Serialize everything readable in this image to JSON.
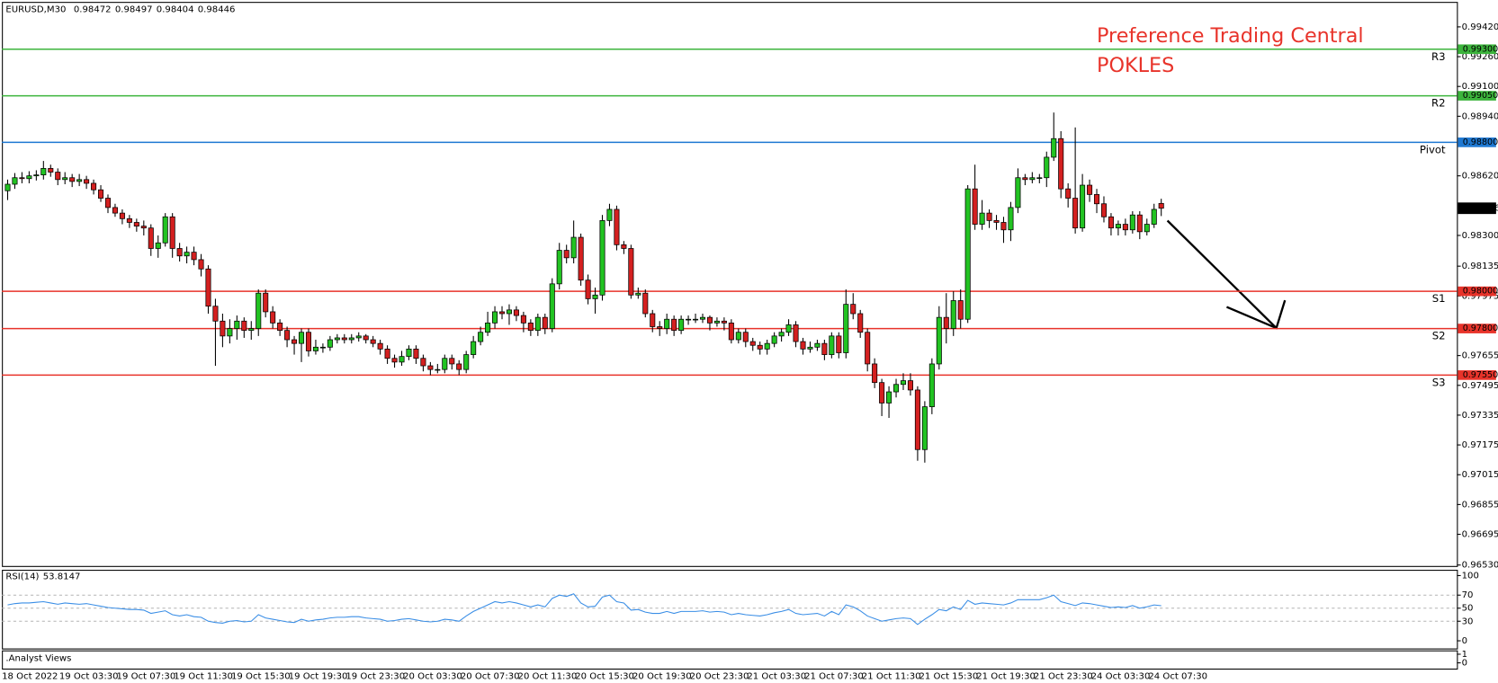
{
  "chart_data": [
    {
      "type": "candlestick",
      "title": "EURUSD,M30",
      "annotations": [
        "Preference Trading Central",
        "POKLES"
      ],
      "categories": [
        "18 Oct 2022",
        null,
        null,
        null,
        null,
        null,
        null,
        null,
        "19 Oct 03:30",
        null,
        null,
        null,
        null,
        null,
        null,
        null,
        "19 Oct 07:30",
        null,
        null,
        null,
        null,
        null,
        null,
        null,
        "19 Oct 11:30",
        null,
        null,
        null,
        null,
        null,
        null,
        null,
        "19 Oct 15:30",
        null,
        null,
        null,
        null,
        null,
        null,
        null,
        "19 Oct 19:30",
        null,
        null,
        null,
        null,
        null,
        null,
        null,
        "19 Oct 23:30",
        null,
        null,
        null,
        null,
        null,
        null,
        null,
        "20 Oct 03:30",
        null,
        null,
        null,
        null,
        null,
        null,
        null,
        "20 Oct 07:30",
        null,
        null,
        null,
        null,
        null,
        null,
        null,
        "20 Oct 11:30",
        null,
        null,
        null,
        null,
        null,
        null,
        null,
        "20 Oct 15:30",
        null,
        null,
        null,
        null,
        null,
        null,
        null,
        "20 Oct 19:30",
        null,
        null,
        null,
        null,
        null,
        null,
        null,
        "20 Oct 23:30",
        null,
        null,
        null,
        null,
        null,
        null,
        null,
        "21 Oct 03:30",
        null,
        null,
        null,
        null,
        null,
        null,
        null,
        "21 Oct 07:30",
        null,
        null,
        null,
        null,
        null,
        null,
        null,
        "21 Oct 11:30",
        null,
        null,
        null,
        null,
        null,
        null,
        null,
        "21 Oct 15:30",
        null,
        null,
        null,
        null,
        null,
        null,
        null,
        "21 Oct 19:30",
        null,
        null,
        null,
        null,
        null,
        null,
        null,
        "21 Oct 23:30",
        null,
        null,
        null,
        null,
        null,
        null,
        null,
        "24 Oct 03:30",
        null,
        null,
        null,
        null,
        null,
        null,
        null,
        "24 Oct 07:30",
        null
      ],
      "open": [
        0.9854,
        0.98575,
        0.9861,
        0.98605,
        0.9862,
        0.98625,
        0.9866,
        0.9864,
        0.986,
        0.9861,
        0.9859,
        0.986,
        0.9858,
        0.98545,
        0.985,
        0.9845,
        0.9842,
        0.9839,
        0.9837,
        0.9835,
        0.9834,
        0.9823,
        0.9826,
        0.984,
        0.9823,
        0.9819,
        0.9821,
        0.9817,
        0.9812,
        0.9792,
        0.9784,
        0.9776,
        0.978,
        0.9784,
        0.9779,
        0.978,
        0.9799,
        0.9789,
        0.9783,
        0.9779,
        0.9774,
        0.9772,
        0.9778,
        0.9768,
        0.977,
        0.977,
        0.9774,
        0.9775,
        0.9774,
        0.9775,
        0.9776,
        0.9774,
        0.9772,
        0.9769,
        0.9764,
        0.9762,
        0.9765,
        0.9769,
        0.9764,
        0.976,
        0.9758,
        0.9758,
        0.9764,
        0.9761,
        0.9758,
        0.9766,
        0.9773,
        0.9778,
        0.9783,
        0.9789,
        0.9788,
        0.979,
        0.9787,
        0.9783,
        0.9779,
        0.9786,
        0.978,
        0.9804,
        0.9822,
        0.9818,
        0.9829,
        0.9806,
        0.9796,
        0.9798,
        0.9838,
        0.9844,
        0.9825,
        0.9823,
        0.9798,
        0.9799,
        0.9788,
        0.9781,
        0.978,
        0.9785,
        0.9779,
        0.9785,
        0.9785,
        0.9785,
        0.9786,
        0.9783,
        0.9784,
        0.9783,
        0.9774,
        0.9778,
        0.9773,
        0.9771,
        0.9769,
        0.9772,
        0.9776,
        0.9778,
        0.9782,
        0.9773,
        0.9769,
        0.977,
        0.9772,
        0.9766,
        0.9776,
        0.9767,
        0.9793,
        0.9788,
        0.9778,
        0.9761,
        0.9751,
        0.974,
        0.9746,
        0.975,
        0.9752,
        0.9747,
        0.9715,
        0.9738,
        0.9761,
        0.9786,
        0.978,
        0.9795,
        0.9785,
        0.9855,
        0.9836,
        0.9842,
        0.9838,
        0.9837,
        0.9833,
        0.9845,
        0.9861,
        0.986,
        0.9861,
        0.9861,
        0.9872,
        0.9882,
        0.9855,
        0.985,
        0.9834,
        0.9857,
        0.9852,
        0.9847,
        0.984,
        0.9834,
        0.9836,
        0.9833,
        0.9841,
        0.9832,
        0.9836,
        0.98472
      ],
      "high": [
        0.986,
        0.98635,
        0.9864,
        0.98645,
        0.9865,
        0.987,
        0.9868,
        0.9866,
        0.9864,
        0.9863,
        0.9863,
        0.9862,
        0.986,
        0.9857,
        0.9852,
        0.9847,
        0.9844,
        0.9841,
        0.9839,
        0.9838,
        0.9836,
        0.983,
        0.9842,
        0.9842,
        0.9826,
        0.9824,
        0.9824,
        0.982,
        0.9814,
        0.9796,
        0.9788,
        0.9785,
        0.9787,
        0.9786,
        0.9784,
        0.9801,
        0.9801,
        0.9792,
        0.9785,
        0.9781,
        0.9776,
        0.978,
        0.978,
        0.9774,
        0.9772,
        0.9776,
        0.9777,
        0.9777,
        0.9777,
        0.9778,
        0.9777,
        0.9776,
        0.9774,
        0.9771,
        0.9766,
        0.9768,
        0.9771,
        0.9771,
        0.9766,
        0.9762,
        0.9761,
        0.9766,
        0.9766,
        0.9763,
        0.9768,
        0.9776,
        0.9781,
        0.9789,
        0.9792,
        0.9792,
        0.9793,
        0.9792,
        0.9789,
        0.9785,
        0.9788,
        0.9788,
        0.9807,
        0.9826,
        0.9825,
        0.9838,
        0.9831,
        0.9809,
        0.9802,
        0.9841,
        0.9847,
        0.9846,
        0.9827,
        0.9825,
        0.9802,
        0.9801,
        0.979,
        0.9784,
        0.9788,
        0.9787,
        0.9787,
        0.9787,
        0.9788,
        0.9788,
        0.9787,
        0.9786,
        0.9786,
        0.9785,
        0.978,
        0.978,
        0.9775,
        0.9773,
        0.9774,
        0.9778,
        0.978,
        0.9785,
        0.9784,
        0.9775,
        0.9773,
        0.9774,
        0.9774,
        0.9778,
        0.9778,
        0.9801,
        0.9799,
        0.979,
        0.978,
        0.9764,
        0.9753,
        0.9749,
        0.9753,
        0.9756,
        0.9756,
        0.9749,
        0.9741,
        0.9764,
        0.9792,
        0.9799,
        0.98,
        0.9801,
        0.9857,
        0.9868,
        0.9849,
        0.9844,
        0.9841,
        0.984,
        0.9848,
        0.9866,
        0.9863,
        0.9864,
        0.9863,
        0.9875,
        0.9896,
        0.9886,
        0.9858,
        0.9888,
        0.9863,
        0.986,
        0.9855,
        0.9851,
        0.9842,
        0.9838,
        0.9839,
        0.9843,
        0.9843,
        0.9839,
        0.9847,
        0.98497
      ],
      "low": [
        0.9849,
        0.9855,
        0.9858,
        0.9858,
        0.98595,
        0.986,
        0.98615,
        0.9857,
        0.98575,
        0.9856,
        0.98565,
        0.9855,
        0.9852,
        0.9848,
        0.9842,
        0.984,
        0.9836,
        0.9834,
        0.9832,
        0.983,
        0.9819,
        0.9818,
        0.9824,
        0.9818,
        0.9816,
        0.9815,
        0.9814,
        0.9808,
        0.9788,
        0.976,
        0.977,
        0.9772,
        0.9774,
        0.9775,
        0.9774,
        0.9776,
        0.9786,
        0.978,
        0.9776,
        0.977,
        0.9766,
        0.9762,
        0.9765,
        0.9766,
        0.9767,
        0.9768,
        0.9772,
        0.9772,
        0.9772,
        0.9773,
        0.9772,
        0.977,
        0.9766,
        0.9761,
        0.9759,
        0.976,
        0.9763,
        0.9761,
        0.9757,
        0.9755,
        0.9756,
        0.9756,
        0.9758,
        0.9755,
        0.9756,
        0.9764,
        0.9771,
        0.9776,
        0.978,
        0.9785,
        0.9782,
        0.9784,
        0.9778,
        0.9776,
        0.9776,
        0.9777,
        0.9778,
        0.9801,
        0.9815,
        0.9815,
        0.9803,
        0.9793,
        0.9788,
        0.9795,
        0.9835,
        0.9822,
        0.982,
        0.9796,
        0.9796,
        0.9786,
        0.9778,
        0.9776,
        0.9777,
        0.9776,
        0.9777,
        0.9782,
        0.9783,
        0.9783,
        0.9779,
        0.9781,
        0.9779,
        0.9772,
        0.9772,
        0.977,
        0.9768,
        0.9766,
        0.9766,
        0.977,
        0.9773,
        0.9776,
        0.977,
        0.9766,
        0.9767,
        0.9768,
        0.9763,
        0.9764,
        0.9764,
        0.9764,
        0.9785,
        0.9775,
        0.9757,
        0.9748,
        0.9733,
        0.9732,
        0.9743,
        0.9747,
        0.9744,
        0.9709,
        0.9708,
        0.9734,
        0.9758,
        0.9772,
        0.9776,
        0.978,
        0.9783,
        0.9833,
        0.9833,
        0.9834,
        0.9833,
        0.9826,
        0.9827,
        0.9842,
        0.9857,
        0.9858,
        0.9858,
        0.9856,
        0.987,
        0.985,
        0.9845,
        0.9831,
        0.9832,
        0.9848,
        0.9842,
        0.9837,
        0.983,
        0.983,
        0.983,
        0.9831,
        0.9828,
        0.983,
        0.9834,
        0.98404
      ],
      "close": [
        0.98575,
        0.9861,
        0.98605,
        0.9862,
        0.98625,
        0.9866,
        0.9864,
        0.986,
        0.9861,
        0.9859,
        0.986,
        0.9858,
        0.98545,
        0.985,
        0.9845,
        0.9842,
        0.9839,
        0.9837,
        0.9835,
        0.9834,
        0.9823,
        0.9826,
        0.984,
        0.9823,
        0.9819,
        0.9821,
        0.9817,
        0.9812,
        0.9792,
        0.9784,
        0.9776,
        0.978,
        0.9784,
        0.9779,
        0.978,
        0.9799,
        0.9789,
        0.9783,
        0.9779,
        0.9774,
        0.9772,
        0.9778,
        0.9768,
        0.977,
        0.977,
        0.9774,
        0.9775,
        0.9774,
        0.9775,
        0.9776,
        0.9774,
        0.9772,
        0.9769,
        0.9764,
        0.9762,
        0.9765,
        0.9769,
        0.9764,
        0.976,
        0.9758,
        0.9758,
        0.9764,
        0.9761,
        0.9758,
        0.9766,
        0.9773,
        0.9778,
        0.9783,
        0.9789,
        0.9788,
        0.979,
        0.9787,
        0.9783,
        0.9779,
        0.9786,
        0.978,
        0.9804,
        0.9822,
        0.9818,
        0.9829,
        0.9806,
        0.9796,
        0.9798,
        0.9838,
        0.9844,
        0.9825,
        0.9823,
        0.9798,
        0.9799,
        0.9788,
        0.9781,
        0.978,
        0.9785,
        0.9779,
        0.9785,
        0.9785,
        0.9785,
        0.9786,
        0.9783,
        0.9784,
        0.9783,
        0.9774,
        0.9778,
        0.9773,
        0.9771,
        0.9769,
        0.9772,
        0.9776,
        0.9778,
        0.9782,
        0.9773,
        0.9769,
        0.977,
        0.9772,
        0.9766,
        0.9776,
        0.9767,
        0.9793,
        0.9788,
        0.9778,
        0.9761,
        0.9751,
        0.974,
        0.9746,
        0.975,
        0.9752,
        0.9747,
        0.9715,
        0.9738,
        0.9761,
        0.9786,
        0.978,
        0.9795,
        0.9785,
        0.9855,
        0.9836,
        0.9842,
        0.9838,
        0.9837,
        0.9833,
        0.9845,
        0.9861,
        0.986,
        0.9861,
        0.9861,
        0.9872,
        0.9882,
        0.9855,
        0.985,
        0.9834,
        0.9857,
        0.9852,
        0.9847,
        0.984,
        0.9834,
        0.9836,
        0.9833,
        0.9841,
        0.9832,
        0.9836,
        0.9844,
        0.98446
      ],
      "up_color": "#22c322",
      "down_color": "#d42020",
      "ylim": [
        0.96525,
        0.99554
      ],
      "yticks": [
        {
          "value": 0.9942,
          "label": "0.99420"
        },
        {
          "value": 0.9926,
          "label": "0.99260"
        },
        {
          "value": 0.991,
          "label": "0.99100"
        },
        {
          "value": 0.9894,
          "label": "0.98940"
        },
        {
          "value": 0.9862,
          "label": "0.98620"
        },
        {
          "value": 0.983,
          "label": "0.98300"
        },
        0.98135,
        0.97975,
        0.97655,
        0.97495,
        0.97335,
        0.97175,
        0.97015,
        0.96855,
        0.96695,
        {
          "value": 0.9653,
          "label": "0.96530"
        }
      ],
      "levels": [
        {
          "name": "R3",
          "value": 0.993,
          "value_label": "0.99300",
          "color": "#3cb43c"
        },
        {
          "name": "R2",
          "value": 0.9905,
          "value_label": "0.99050",
          "color": "#3cb43c"
        },
        {
          "name": "Pivot",
          "value": 0.988,
          "value_label": "0.98800",
          "color": "#1e78d2"
        },
        {
          "name": "S1",
          "value": 0.98,
          "value_label": "0.98000",
          "color": "#e8332a"
        },
        {
          "name": "S2",
          "value": 0.978,
          "value_label": "0.97800",
          "color": "#e8332a"
        },
        {
          "name": "S3",
          "value": 0.9755,
          "value_label": "0.97550",
          "color": "#e8332a"
        }
      ]
    },
    {
      "type": "line",
      "title": "RSI(14)",
      "color": "#3a8ee6",
      "values": [
        55,
        57,
        58,
        58,
        59,
        60,
        58,
        56,
        58,
        57,
        56,
        57,
        55,
        53,
        51,
        50,
        49,
        48,
        48,
        47,
        42,
        44,
        46,
        40,
        38,
        40,
        37,
        36,
        30,
        28,
        27,
        30,
        31,
        29,
        30,
        40,
        35,
        33,
        31,
        29,
        28,
        33,
        30,
        32,
        33,
        35,
        36,
        36,
        37,
        37,
        35,
        34,
        33,
        30,
        31,
        33,
        34,
        32,
        30,
        29,
        30,
        33,
        32,
        30,
        38,
        45,
        50,
        55,
        60,
        58,
        60,
        58,
        55,
        52,
        55,
        52,
        65,
        70,
        68,
        72,
        58,
        52,
        53,
        67,
        70,
        60,
        58,
        47,
        48,
        44,
        42,
        42,
        45,
        42,
        45,
        45,
        45,
        46,
        44,
        45,
        44,
        40,
        42,
        40,
        39,
        38,
        40,
        43,
        45,
        48,
        42,
        40,
        41,
        42,
        38,
        45,
        40,
        55,
        52,
        46,
        38,
        34,
        30,
        32,
        34,
        35,
        34,
        25,
        33,
        40,
        48,
        46,
        52,
        48,
        62,
        56,
        58,
        57,
        56,
        55,
        58,
        63,
        63,
        63,
        63,
        66,
        70,
        60,
        57,
        54,
        58,
        57,
        55,
        53,
        51,
        52,
        51,
        54,
        50,
        52,
        55,
        53.8147
      ],
      "ylim": [
        0,
        100
      ],
      "yticks": [
        100,
        70,
        50,
        30,
        0
      ]
    },
    {
      "type": "indicator",
      "title": ".Analyst Views",
      "ylim": [
        0,
        1
      ],
      "yticks": [
        1,
        0
      ]
    }
  ]
}
